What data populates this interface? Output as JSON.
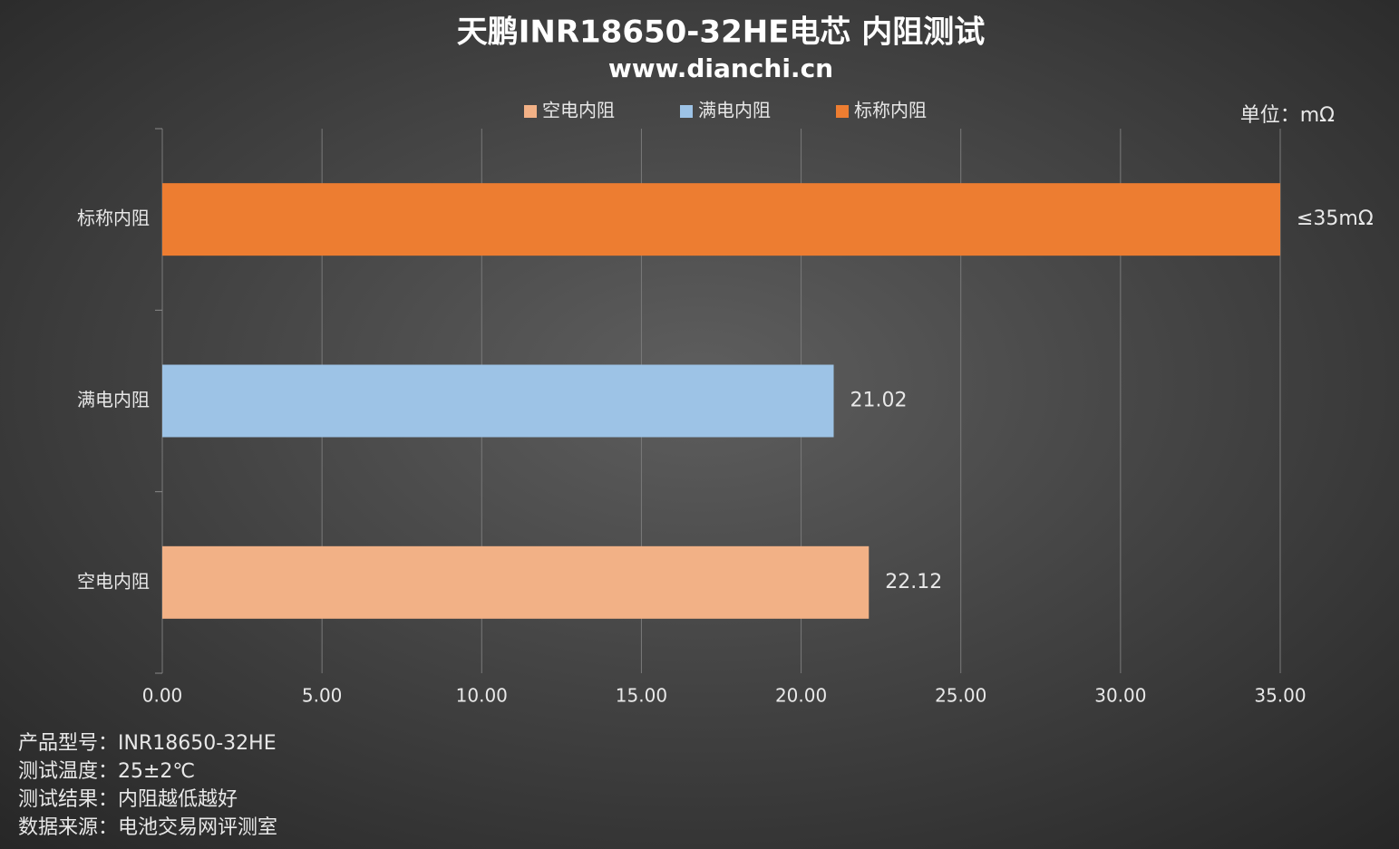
{
  "chart_data": {
    "type": "bar",
    "orientation": "horizontal",
    "title": "天鹏INR18650-32HE电芯 内阻测试",
    "subtitle": "www.dianchi.cn",
    "unit_label": "单位：mΩ",
    "categories": [
      "空电内阻",
      "满电内阻",
      "标称内阻"
    ],
    "values": [
      22.12,
      21.02,
      35
    ],
    "value_labels": [
      "22.12",
      "21.02",
      "≤35mΩ"
    ],
    "colors": [
      "#f2b186",
      "#9dc3e6",
      "#ed7d31"
    ],
    "xlim": [
      0,
      35
    ],
    "xticks": [
      {
        "value": 0,
        "label": "0.00"
      },
      {
        "value": 5,
        "label": "5.00"
      },
      {
        "value": 10,
        "label": "10.00"
      },
      {
        "value": 15,
        "label": "15.00"
      },
      {
        "value": 20,
        "label": "20.00"
      },
      {
        "value": 25,
        "label": "25.00"
      },
      {
        "value": 30,
        "label": "30.00"
      },
      {
        "value": 35,
        "label": "35.00"
      }
    ],
    "grid": true,
    "legend": "top",
    "notes": [
      "产品型号：INR18650-32HE",
      "测试温度：25±2℃",
      "测试结果：内阻越低越好",
      "数据来源：电池交易网评测室"
    ]
  }
}
